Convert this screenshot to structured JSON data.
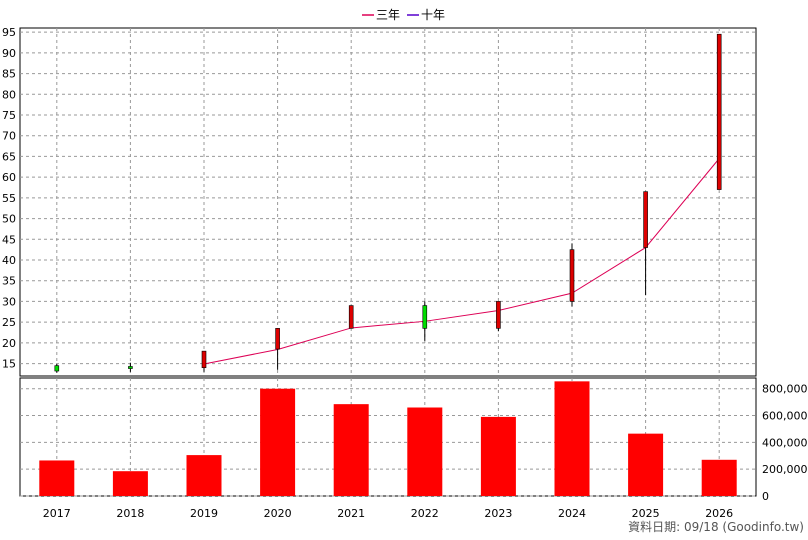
{
  "chart_data": [
    {
      "type": "candlestick",
      "legend": [
        {
          "name": "三年",
          "color": "#dd0055"
        },
        {
          "name": "十年",
          "color": "#5500cc"
        }
      ],
      "x": [
        "2017",
        "2018",
        "2019",
        "2020",
        "2021",
        "2022",
        "2023",
        "2024",
        "2025",
        "2026"
      ],
      "ohlc": [
        {
          "open": 14.5,
          "close": 13.2,
          "high": 14.9,
          "low": 12.8
        },
        {
          "open": 14.3,
          "close": 13.8,
          "high": 15.2,
          "low": 13.0
        },
        {
          "open": 14.0,
          "close": 18.0,
          "high": 18.0,
          "low": 13.0
        },
        {
          "open": 18.5,
          "close": 23.5,
          "high": 23.5,
          "low": 13.5
        },
        {
          "open": 23.5,
          "close": 29.0,
          "high": 29.0,
          "low": 23.5
        },
        {
          "open": 29.0,
          "close": 23.5,
          "high": 30.0,
          "low": 20.5
        },
        {
          "open": 23.5,
          "close": 30.0,
          "high": 30.0,
          "low": 22.8
        },
        {
          "open": 30.0,
          "close": 42.5,
          "high": 44.0,
          "low": 28.8
        },
        {
          "open": 43.0,
          "close": 56.5,
          "high": 56.5,
          "low": 31.5
        },
        {
          "open": 57.0,
          "close": 94.5,
          "high": 94.5,
          "low": 57.0
        }
      ],
      "ma3": [
        null,
        null,
        14.9,
        18.4,
        23.6,
        25.2,
        27.8,
        32.0,
        43.0,
        64.5
      ],
      "ylim": [
        12,
        96
      ],
      "yticks": [
        15,
        20,
        25,
        30,
        35,
        40,
        45,
        50,
        55,
        60,
        65,
        70,
        75,
        80,
        85,
        90,
        95
      ],
      "up_color": "#dd0000",
      "down_color": "#00dd00",
      "grid": true
    },
    {
      "type": "bar",
      "x": [
        "2017",
        "2018",
        "2019",
        "2020",
        "2021",
        "2022",
        "2023",
        "2024",
        "2025",
        "2026"
      ],
      "values": [
        265000,
        185000,
        305000,
        800000,
        685000,
        660000,
        590000,
        855000,
        465000,
        270000
      ],
      "ylim": [
        0,
        880000
      ],
      "yticks": [
        0,
        200000,
        400000,
        600000,
        800000
      ],
      "ytick_labels": [
        "0",
        "200,000",
        "400,000",
        "600,000",
        "800,000"
      ],
      "color": "#ff0000",
      "grid": true
    }
  ],
  "footer": "資料日期: 09/18  (Goodinfo.tw)"
}
